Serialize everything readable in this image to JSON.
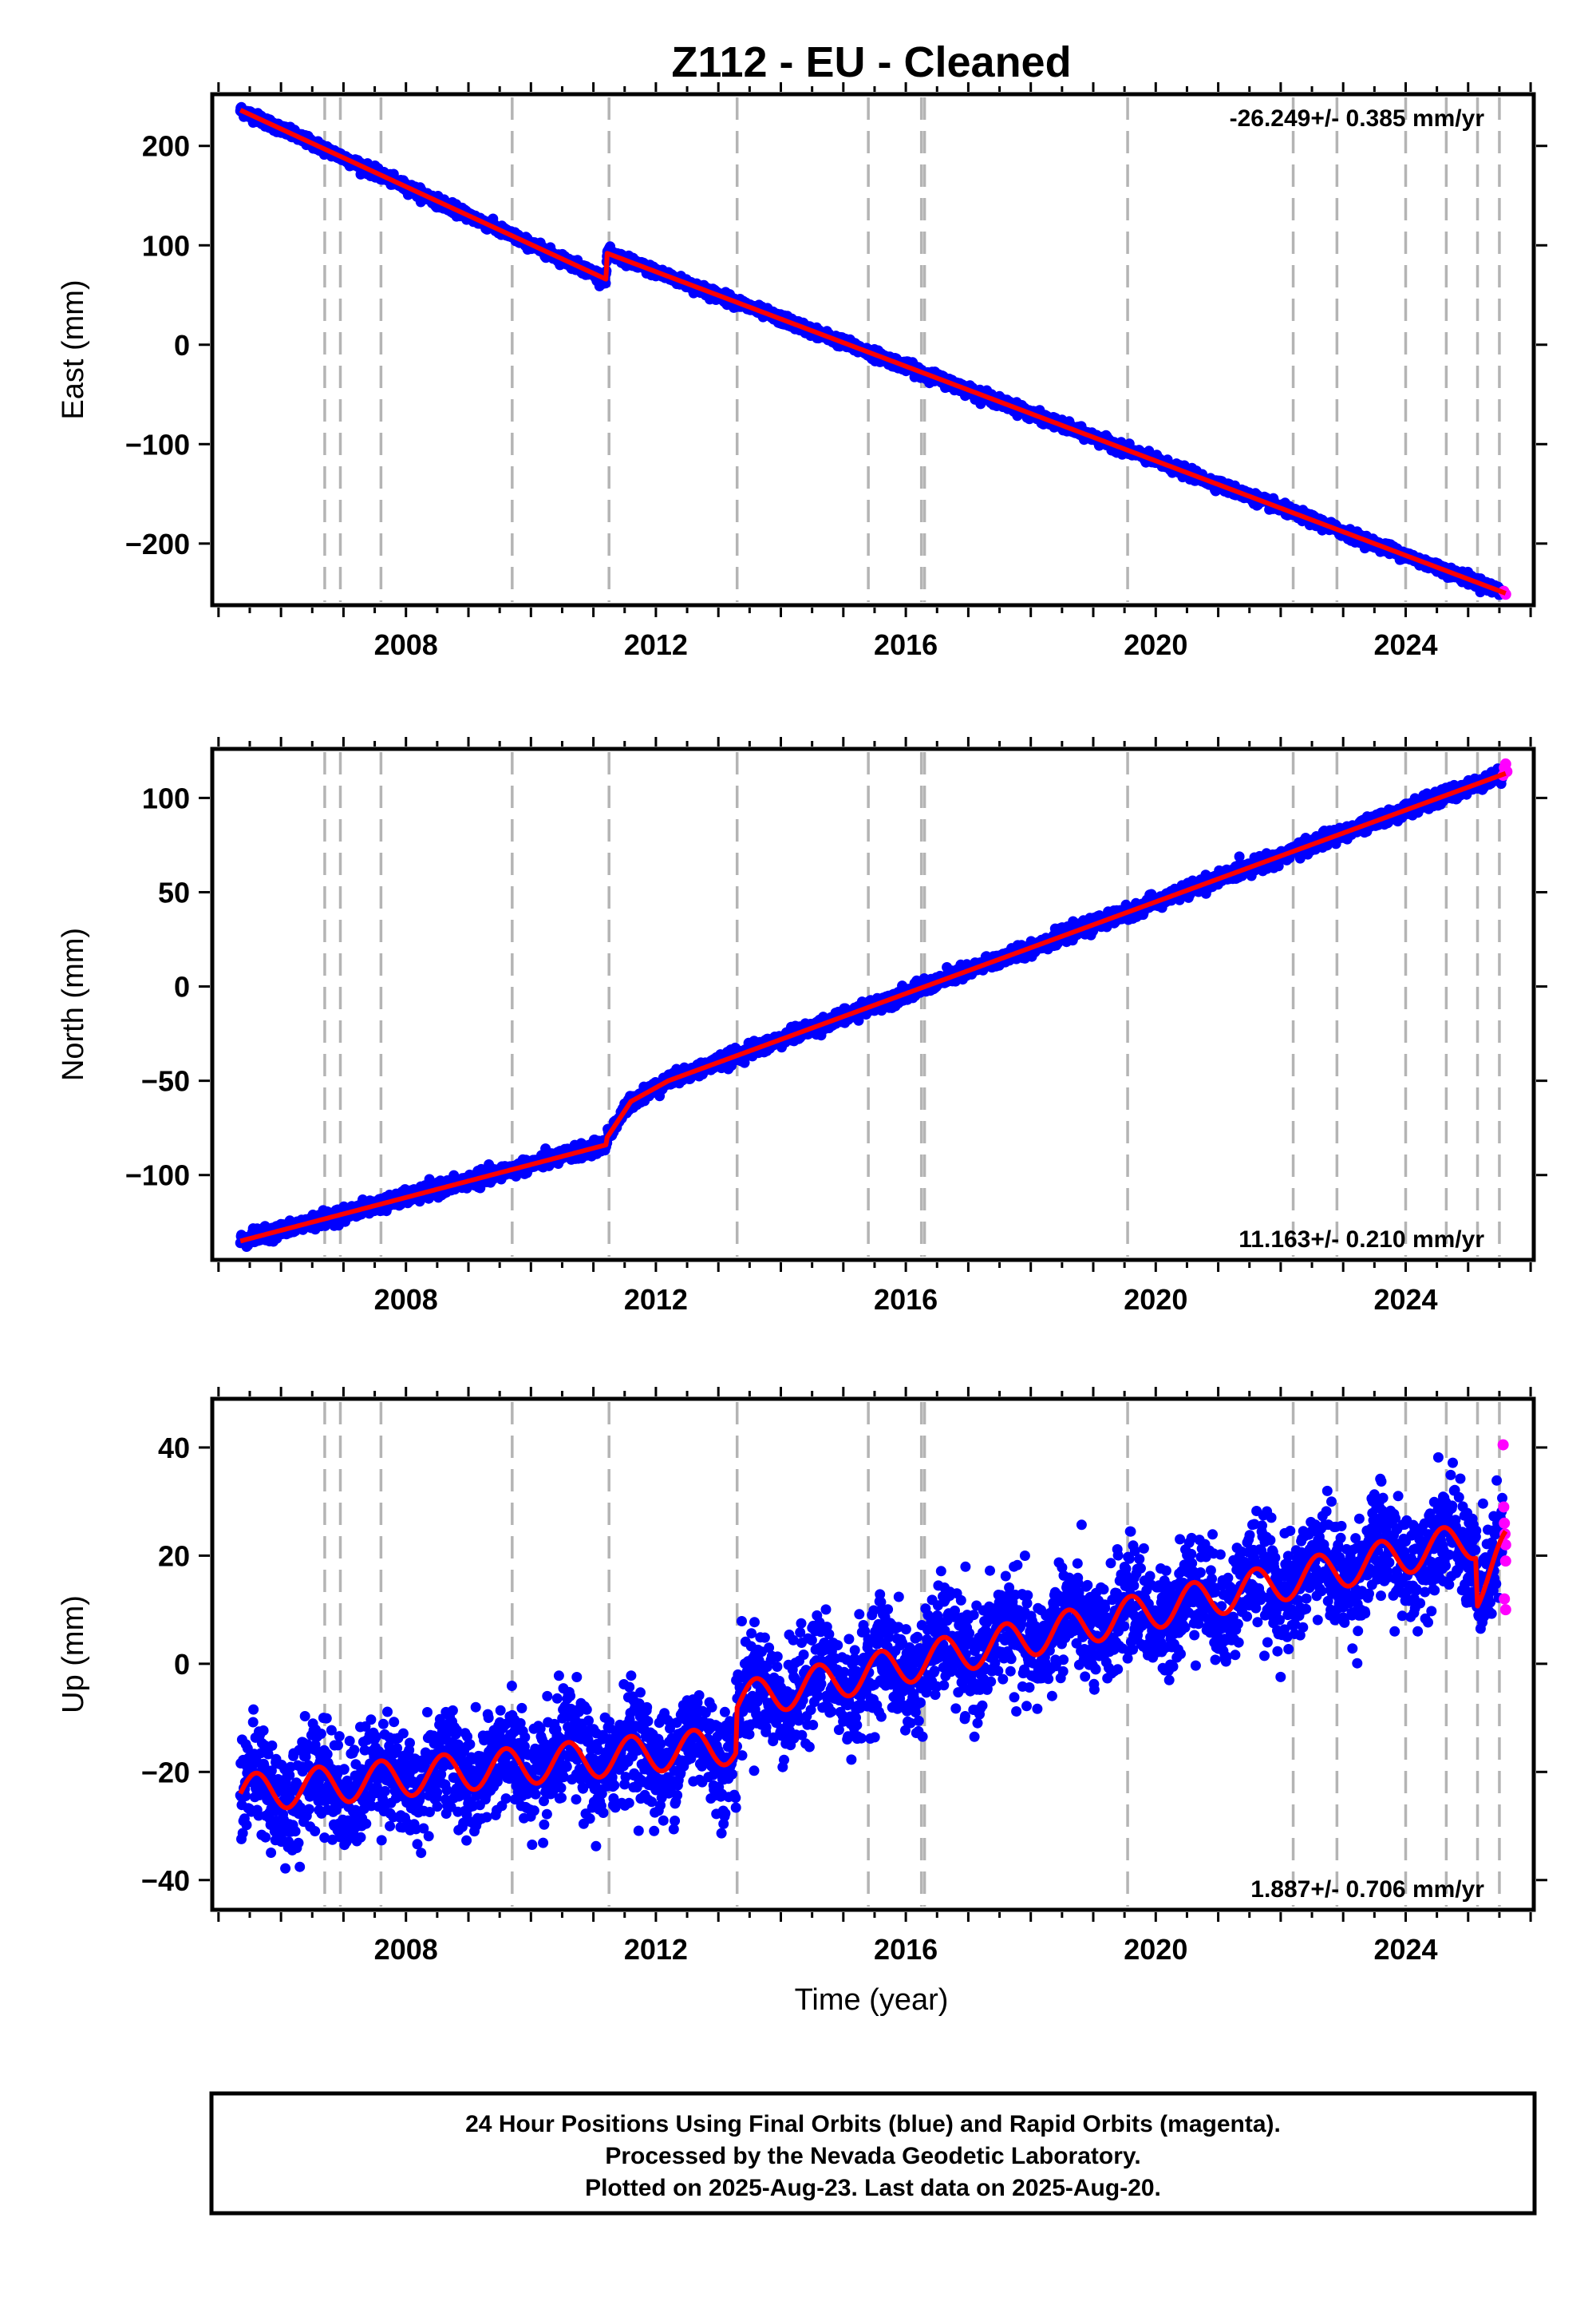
{
  "title": "Z112  - EU - Cleaned",
  "xlabel": "Time (year)",
  "footer": {
    "line1": "24 Hour Positions Using Final Orbits (blue) and Rapid Orbits (magenta).",
    "line2": "Processed by the Nevada Geodetic Laboratory.",
    "line3": "Plotted on 2025-Aug-23. Last data on 2025-Aug-20."
  },
  "colors": {
    "final_orbits": "#0000ff",
    "rapid_orbits": "#ff00ff",
    "model": "#ff0000",
    "event_lines": "#b4b4b4"
  },
  "chart_data": [
    {
      "type": "scatter",
      "panel": "east",
      "ylabel": "East (mm)",
      "rate_label": "-26.249+/- 0.385 mm/yr",
      "rate_position": "top-right",
      "xlim": [
        2004.9,
        2026.05
      ],
      "ylim": [
        -262,
        252
      ],
      "xticks": [
        2008,
        2012,
        2016,
        2020,
        2024
      ],
      "yticks": [
        -200,
        -100,
        0,
        100,
        200
      ],
      "event_lines": [
        2006.7,
        2006.95,
        2007.6,
        2009.7,
        2011.25,
        2013.3,
        2015.4,
        2016.25,
        2016.3,
        2019.55,
        2022.2,
        2022.9,
        2024.0,
        2024.65,
        2025.15,
        2025.5
      ],
      "model_points": [
        [
          2005.35,
          236
        ],
        [
          2011.2,
          66
        ],
        [
          2011.22,
          92
        ],
        [
          2025.6,
          -250
        ]
      ],
      "final_scatter_mm": 2.5,
      "rapid_points": [
        [
          2025.57,
          -248
        ],
        [
          2025.6,
          -251
        ]
      ]
    },
    {
      "type": "scatter",
      "panel": "north",
      "ylabel": "North (mm)",
      "rate_label": "11.163+/- 0.210 mm/yr",
      "rate_position": "bottom-right",
      "xlim": [
        2004.9,
        2026.05
      ],
      "ylim": [
        -145,
        126
      ],
      "xticks": [
        2008,
        2012,
        2016,
        2020,
        2024
      ],
      "yticks": [
        -100,
        -50,
        0,
        50,
        100
      ],
      "event_lines": [
        2006.7,
        2006.95,
        2007.6,
        2009.7,
        2011.25,
        2013.3,
        2015.4,
        2016.25,
        2016.3,
        2019.55,
        2022.2,
        2022.9,
        2024.0,
        2024.65,
        2025.15,
        2025.5
      ],
      "model_points": [
        [
          2005.35,
          -135
        ],
        [
          2011.2,
          -84
        ],
        [
          2011.22,
          -80
        ],
        [
          2011.6,
          -61
        ],
        [
          2012.2,
          -50
        ],
        [
          2025.6,
          113
        ]
      ],
      "final_scatter_mm": 1.8,
      "rapid_points": [
        [
          2025.56,
          112
        ],
        [
          2025.58,
          116
        ],
        [
          2025.6,
          118
        ],
        [
          2025.62,
          114
        ]
      ]
    },
    {
      "type": "scatter",
      "panel": "up",
      "ylabel": "Up (mm)",
      "rate_label": "1.887+/- 0.706 mm/yr",
      "rate_position": "bottom-right",
      "xlim": [
        2004.9,
        2026.05
      ],
      "ylim": [
        -45.5,
        49
      ],
      "xticks": [
        2008,
        2012,
        2016,
        2020,
        2024
      ],
      "yticks": [
        -40,
        -20,
        0,
        20,
        40
      ],
      "event_lines": [
        2006.7,
        2006.95,
        2007.6,
        2009.7,
        2011.25,
        2013.3,
        2015.4,
        2016.25,
        2016.3,
        2019.55,
        2022.2,
        2022.9,
        2024.0,
        2024.65,
        2025.15,
        2025.5
      ],
      "model_points": [
        [
          2005.35,
          -24
        ],
        [
          2013.28,
          -15
        ],
        [
          2013.3,
          -7
        ],
        [
          2025.12,
          23
        ],
        [
          2025.15,
          14
        ],
        [
          2025.6,
          21
        ]
      ],
      "seasonal_amplitude_mm": 3.5,
      "final_scatter_mm": 5,
      "rapid_points": [
        [
          2025.56,
          40.5
        ],
        [
          2025.57,
          29
        ],
        [
          2025.58,
          26
        ],
        [
          2025.59,
          24
        ],
        [
          2025.6,
          22
        ],
        [
          2025.6,
          19
        ],
        [
          2025.58,
          12
        ],
        [
          2025.6,
          10
        ]
      ]
    }
  ]
}
